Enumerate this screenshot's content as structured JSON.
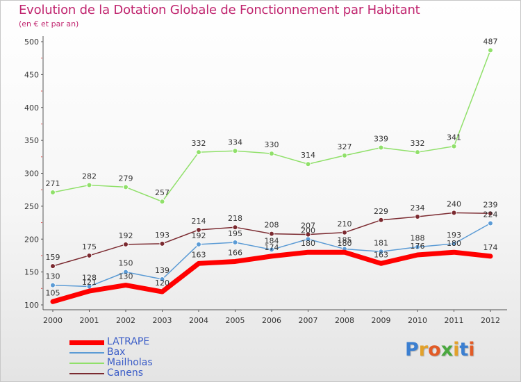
{
  "header": {
    "title": "Evolution de la Dotation Globale de Fonctionnement par Habitant",
    "subtitle": "(en € et par an)"
  },
  "logo": {
    "text": "Proxiti",
    "letter_colors": [
      "#3b7fd1",
      "#e2a12b",
      "#e25b26",
      "#4aa83f",
      "#e2a12b",
      "#3b7fd1",
      "#e25b26"
    ]
  },
  "chart_data": {
    "type": "line",
    "title": "Evolution de la Dotation Globale de Fonctionnement par Habitant",
    "subtitle": "(en € et par an)",
    "xlabel": "",
    "ylabel": "",
    "x": [
      "2000",
      "2001",
      "2002",
      "2003",
      "2004",
      "2005",
      "2006",
      "2007",
      "2008",
      "2009",
      "2010",
      "2011",
      "2012"
    ],
    "ylim": [
      100,
      500
    ],
    "yticks": [
      100,
      150,
      200,
      250,
      300,
      350,
      400,
      450,
      500
    ],
    "grid": false,
    "legend_position": "bottom-left",
    "series": [
      {
        "name": "LATRAPE",
        "color": "#ff0000",
        "line_width": 7,
        "marker": "none",
        "values": [
          105,
          121,
          130,
          120,
          163,
          166,
          174,
          180,
          180,
          163,
          176,
          180,
          174
        ],
        "labels": [
          "105",
          "121",
          "130",
          "120",
          "163",
          "166",
          "174",
          "180",
          "180",
          "163",
          "176",
          "180",
          "174"
        ]
      },
      {
        "name": "Bax",
        "color": "#5b9bd5",
        "line_width": 1.5,
        "marker": "circle",
        "values": [
          130,
          128,
          150,
          139,
          192,
          195,
          184,
          200,
          185,
          181,
          188,
          193,
          224
        ],
        "labels": [
          "130",
          "128",
          "150",
          "139",
          "192",
          "195",
          "184",
          "200",
          "185",
          "181",
          "188",
          "193",
          "224"
        ]
      },
      {
        "name": "Mailholas",
        "color": "#90e06a",
        "line_width": 1.5,
        "marker": "circle",
        "values": [
          271,
          282,
          279,
          257,
          332,
          334,
          330,
          314,
          327,
          339,
          332,
          341,
          487
        ],
        "labels": [
          "271",
          "282",
          "279",
          "257",
          "332",
          "334",
          "330",
          "314",
          "327",
          "339",
          "332",
          "341",
          "487"
        ]
      },
      {
        "name": "Canens",
        "color": "#7b2a30",
        "line_width": 1.5,
        "marker": "circle",
        "values": [
          159,
          175,
          192,
          193,
          214,
          218,
          208,
          207,
          210,
          229,
          234,
          240,
          239
        ],
        "labels": [
          "159",
          "175",
          "192",
          "193",
          "214",
          "218",
          "208",
          "207",
          "210",
          "229",
          "234",
          "240",
          "239"
        ]
      }
    ]
  }
}
